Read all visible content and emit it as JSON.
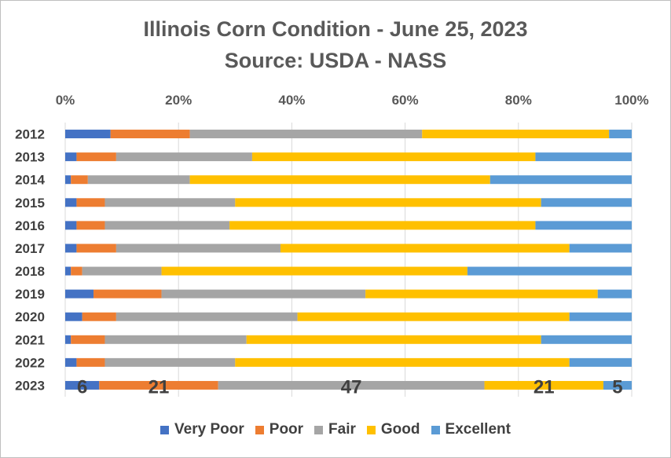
{
  "chart_data": {
    "type": "bar",
    "orientation": "horizontal",
    "stacked": true,
    "title": "Illinois Corn Condition - June 25, 2023",
    "subtitle": "Source: USDA - NASS",
    "xlim": [
      0,
      100
    ],
    "x_ticks": [
      "0%",
      "20%",
      "40%",
      "60%",
      "80%",
      "100%"
    ],
    "x_axis_position": "top",
    "legend_position": "bottom",
    "grid": true,
    "categories": [
      "2012",
      "2013",
      "2014",
      "2015",
      "2016",
      "2017",
      "2018",
      "2019",
      "2020",
      "2021",
      "2022",
      "2023"
    ],
    "series": [
      {
        "name": "Very Poor",
        "color": "#4472C4",
        "values": [
          8,
          2,
          1,
          2,
          2,
          2,
          1,
          5,
          3,
          1,
          2,
          6
        ]
      },
      {
        "name": "Poor",
        "color": "#ED7D31",
        "values": [
          14,
          7,
          3,
          5,
          5,
          7,
          2,
          12,
          6,
          6,
          5,
          21
        ]
      },
      {
        "name": "Fair",
        "color": "#A5A5A5",
        "values": [
          41,
          24,
          18,
          23,
          22,
          29,
          14,
          36,
          32,
          25,
          23,
          47
        ]
      },
      {
        "name": "Good",
        "color": "#FFC000",
        "values": [
          33,
          50,
          53,
          54,
          54,
          51,
          54,
          41,
          48,
          52,
          59,
          21
        ]
      },
      {
        "name": "Excellent",
        "color": "#5B9BD5",
        "values": [
          4,
          17,
          25,
          16,
          17,
          11,
          29,
          6,
          11,
          16,
          11,
          5
        ]
      }
    ],
    "data_labels": {
      "category": "2023",
      "values": [
        "6",
        "21",
        "47",
        "21",
        "5"
      ]
    }
  }
}
